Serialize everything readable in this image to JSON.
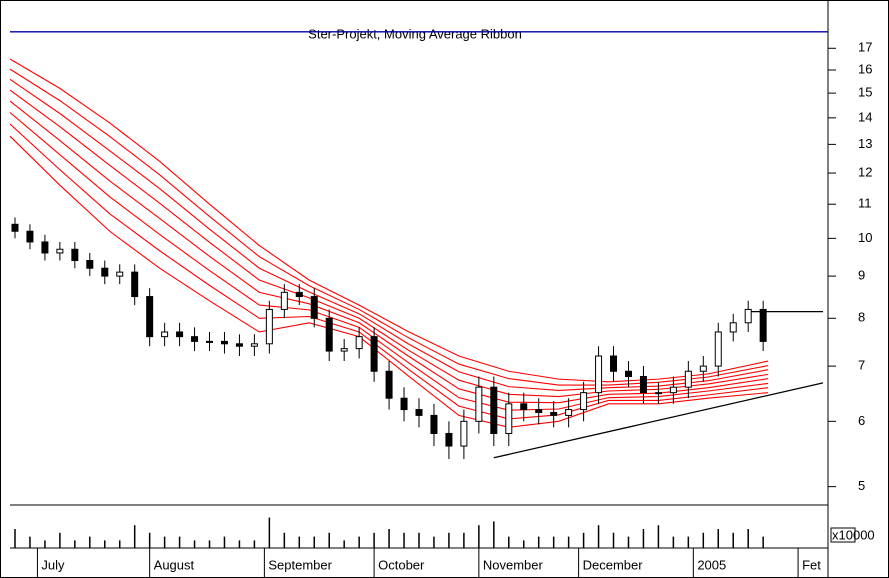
{
  "chart_data": {
    "type": "candlestick",
    "title": "Ster-Projekt, Moving Average Ribbon",
    "x": [
      1,
      4,
      7,
      10,
      13,
      16,
      19,
      22,
      25,
      28,
      31,
      34,
      37,
      40,
      43,
      46,
      49,
      52,
      55,
      58,
      61,
      64,
      67,
      70,
      73,
      76,
      79,
      82,
      85,
      88,
      91,
      94,
      97,
      100,
      103,
      106,
      109,
      112,
      115,
      118,
      121,
      124,
      127,
      130,
      133,
      136,
      139,
      142,
      145,
      148,
      151
    ],
    "open": [
      10.4,
      10.2,
      9.9,
      9.6,
      9.7,
      9.4,
      9.2,
      9.0,
      9.1,
      8.5,
      7.6,
      7.7,
      7.6,
      7.5,
      7.5,
      7.45,
      7.4,
      7.45,
      8.2,
      8.6,
      8.5,
      8.0,
      7.3,
      7.35,
      7.6,
      6.9,
      6.4,
      6.2,
      6.1,
      5.8,
      5.6,
      6.0,
      6.6,
      5.8,
      6.3,
      6.2,
      6.15,
      6.1,
      6.2,
      6.5,
      7.2,
      6.9,
      6.8,
      6.5,
      6.5,
      6.6,
      6.9,
      7.0,
      7.7,
      7.9,
      8.2
    ],
    "high": [
      10.6,
      10.4,
      10.1,
      9.9,
      9.9,
      9.6,
      9.4,
      9.3,
      9.3,
      8.7,
      7.9,
      7.9,
      7.8,
      7.7,
      7.7,
      7.65,
      7.65,
      8.4,
      8.8,
      8.8,
      8.7,
      8.2,
      7.55,
      7.8,
      7.8,
      7.1,
      6.6,
      6.4,
      6.3,
      6.0,
      6.2,
      6.8,
      6.8,
      6.5,
      6.5,
      6.4,
      6.35,
      6.4,
      6.7,
      7.4,
      7.4,
      7.1,
      7.0,
      6.7,
      6.8,
      7.1,
      7.2,
      7.9,
      8.1,
      8.4,
      8.4
    ],
    "low": [
      10.0,
      9.7,
      9.4,
      9.4,
      9.2,
      9.0,
      8.8,
      8.8,
      8.3,
      7.4,
      7.4,
      7.4,
      7.3,
      7.3,
      7.25,
      7.2,
      7.2,
      7.25,
      8.0,
      8.3,
      7.8,
      7.1,
      7.1,
      7.15,
      6.7,
      6.2,
      6.0,
      5.9,
      5.6,
      5.4,
      5.4,
      5.8,
      5.6,
      5.6,
      6.0,
      5.95,
      5.9,
      5.9,
      6.0,
      6.3,
      6.7,
      6.6,
      6.3,
      6.3,
      6.3,
      6.4,
      6.7,
      6.8,
      7.5,
      7.7,
      7.3
    ],
    "close": [
      10.2,
      9.9,
      9.6,
      9.7,
      9.4,
      9.2,
      9.0,
      9.1,
      8.5,
      7.6,
      7.7,
      7.6,
      7.5,
      7.5,
      7.45,
      7.4,
      7.45,
      8.2,
      8.6,
      8.5,
      8.0,
      7.3,
      7.35,
      7.6,
      6.9,
      6.4,
      6.2,
      6.1,
      5.8,
      5.6,
      6.0,
      6.6,
      5.8,
      6.3,
      6.2,
      6.15,
      6.1,
      6.2,
      6.5,
      7.2,
      6.9,
      6.8,
      6.5,
      6.5,
      6.6,
      6.9,
      7.0,
      7.7,
      7.9,
      8.2,
      7.5
    ],
    "volume": [
      5,
      3,
      2,
      4,
      2,
      3,
      2,
      2,
      6,
      4,
      3,
      3,
      2,
      2,
      3,
      2,
      2,
      8,
      4,
      3,
      3,
      4,
      2,
      3,
      4,
      5,
      4,
      4,
      3,
      4,
      4,
      6,
      7,
      3,
      2,
      3,
      3,
      3,
      4,
      6,
      4,
      3,
      5,
      6,
      3,
      3,
      4,
      5,
      4,
      5,
      3
    ],
    "volume_ylim": [
      0,
      10
    ],
    "volume_label": "x10000",
    "ribbon_x": [
      0,
      10,
      20,
      30,
      40,
      50,
      60,
      70,
      80,
      90,
      100,
      110,
      120,
      130,
      140,
      152
    ],
    "ribbon": [
      {
        "color": "#ff0000",
        "values": [
          13.3,
          11.6,
          10.2,
          9.2,
          8.4,
          7.7,
          7.9,
          7.6,
          6.8,
          6.1,
          5.9,
          6.0,
          6.3,
          6.3,
          6.4,
          6.5
        ]
      },
      {
        "color": "#ff0000",
        "values": [
          13.76,
          12.11,
          10.71,
          9.66,
          8.77,
          8.0,
          8.04,
          7.7,
          6.93,
          6.26,
          6.04,
          6.11,
          6.36,
          6.36,
          6.46,
          6.59
        ]
      },
      {
        "color": "#ff0000",
        "values": [
          14.21,
          12.63,
          11.23,
          10.11,
          9.14,
          8.3,
          8.19,
          7.8,
          7.06,
          6.41,
          6.19,
          6.21,
          6.41,
          6.43,
          6.53,
          6.67
        ]
      },
      {
        "color": "#ff0000",
        "values": [
          14.67,
          13.14,
          11.74,
          10.57,
          9.51,
          8.6,
          8.33,
          7.9,
          7.19,
          6.57,
          6.33,
          6.32,
          6.47,
          6.49,
          6.59,
          6.76
        ]
      },
      {
        "color": "#ff0000",
        "values": [
          15.13,
          13.66,
          12.26,
          11.03,
          9.89,
          8.9,
          8.47,
          8.0,
          7.31,
          6.73,
          6.47,
          6.43,
          6.53,
          6.56,
          6.66,
          6.84
        ]
      },
      {
        "color": "#ff0000",
        "values": [
          15.59,
          14.17,
          12.77,
          11.49,
          10.26,
          9.2,
          8.61,
          8.1,
          7.44,
          6.89,
          6.61,
          6.54,
          6.59,
          6.62,
          6.72,
          6.93
        ]
      },
      {
        "color": "#ff0000",
        "values": [
          16.04,
          14.69,
          13.29,
          11.94,
          10.63,
          9.5,
          8.76,
          8.2,
          7.57,
          7.04,
          6.76,
          6.64,
          6.64,
          6.69,
          6.79,
          7.01
        ]
      },
      {
        "color": "#ff0000",
        "values": [
          16.5,
          15.2,
          13.8,
          12.4,
          11.0,
          9.8,
          8.9,
          8.3,
          7.7,
          7.2,
          6.9,
          6.75,
          6.7,
          6.75,
          6.85,
          7.1
        ]
      }
    ],
    "lines": [
      {
        "color": "#0000aa",
        "x": [
          0,
          164
        ],
        "y": [
          17.8,
          17.8
        ]
      },
      {
        "color": "#000000",
        "x": [
          148,
          163
        ],
        "y": [
          8.15,
          8.15
        ]
      },
      {
        "color": "#000000",
        "x": [
          97,
          163
        ],
        "y": [
          5.42,
          6.68
        ]
      }
    ],
    "log_y": true,
    "xlim": [
      0,
      164
    ],
    "ylim": [
      4.75,
      18.5
    ],
    "yticks": [
      5,
      6,
      7,
      8,
      9,
      10,
      11,
      12,
      13,
      14,
      15,
      16,
      17
    ],
    "xticks": [
      {
        "value": 5.5,
        "label": "July"
      },
      {
        "value": 28,
        "label": "August"
      },
      {
        "value": 51,
        "label": "September"
      },
      {
        "value": 73,
        "label": "October"
      },
      {
        "value": 94,
        "label": "November"
      },
      {
        "value": 114,
        "label": "December"
      },
      {
        "value": 137,
        "label": "2005"
      },
      {
        "value": 158,
        "label": "Fet"
      }
    ],
    "up_color": "#ffffff",
    "down_color": "#000000"
  }
}
